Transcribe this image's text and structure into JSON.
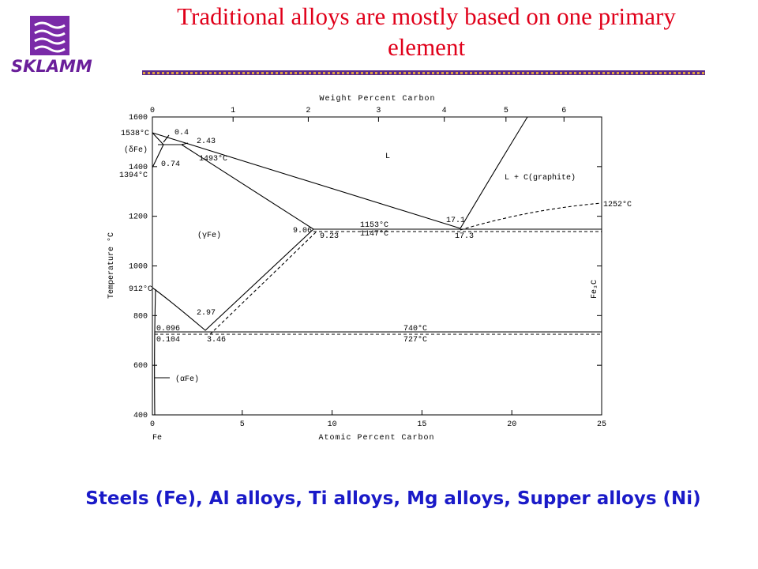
{
  "slide": {
    "title": "Traditional alloys are mostly based on one primary element",
    "logo_text": "SKLAMM",
    "footer": "Steels (Fe), Al alloys, Ti alloys, Mg alloys, Supper alloys (Ni)"
  },
  "diagram": {
    "top_axis_title": "Weight Percent Carbon",
    "bottom_axis_title": "Atomic Percent Carbon",
    "y_axis_title": "Temperature °C",
    "top_ticks": [
      0,
      1,
      2,
      3,
      4,
      5,
      6
    ],
    "bottom_ticks": [
      0,
      5,
      10,
      15,
      20,
      25
    ],
    "y_ticks": [
      400,
      600,
      800,
      1000,
      1200,
      1400,
      1600
    ],
    "labels": [
      "1538°C",
      "0.4",
      "(δFe)",
      "2.43",
      "1493°C",
      "0.74",
      "1394°C",
      "L",
      "L + C(graphite)",
      "1252°C",
      "17.1",
      "1153°C",
      "9.06",
      "9.23",
      "1147°C",
      "17.3",
      "(γFe)",
      "Fe₃C",
      "912°C",
      "2.97",
      "0.096",
      "740°C",
      "0.104",
      "3.46",
      "727°C",
      "(αFe)",
      "Fe"
    ]
  }
}
